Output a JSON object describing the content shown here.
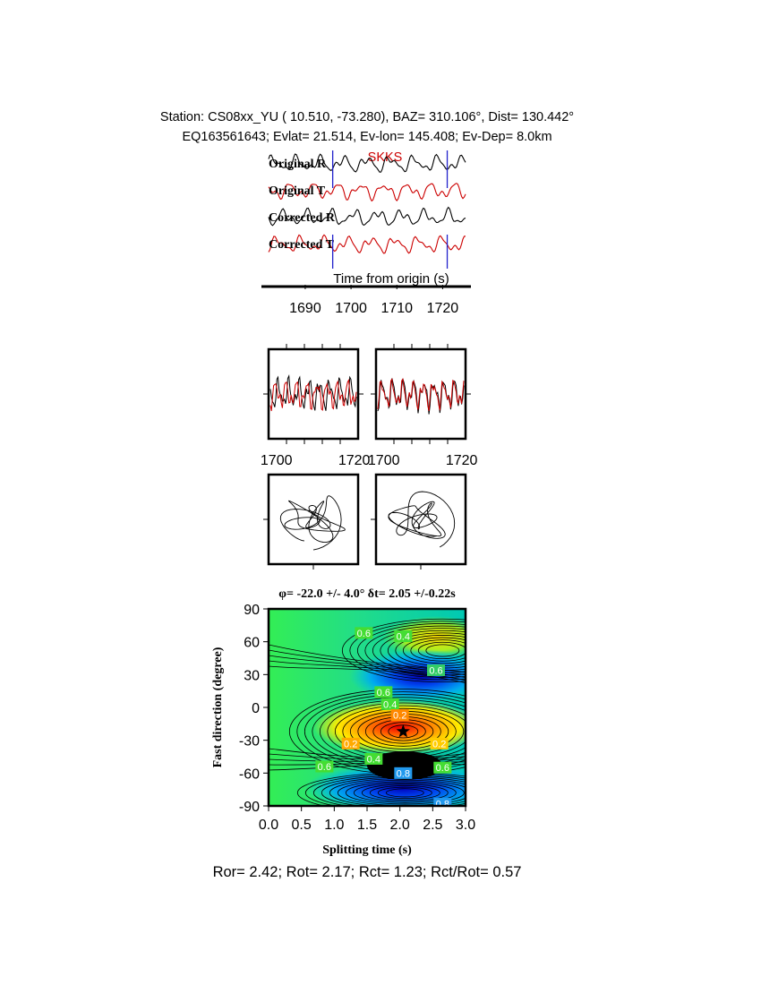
{
  "header": {
    "station_line": "Station: CS08xx_YU (  10.510,  -73.280), BAZ=  310.106°, Dist=  130.442°",
    "event_line": "EQ163561643; Evlat=  21.514, Ev-lon= 145.408; Ev-Dep=  8.0km"
  },
  "chart_data": [
    {
      "type": "line",
      "panel": "seismograms",
      "phase_label": "SKKS",
      "traces": [
        {
          "name": "Original R",
          "color": "#000000"
        },
        {
          "name": "Original T",
          "color": "#cc0000"
        },
        {
          "name": "Corrected R",
          "color": "#000000"
        },
        {
          "name": "Corrected T",
          "color": "#cc0000"
        }
      ],
      "window_markers_s": [
        1696,
        1721
      ],
      "xlabel": "Time from origin (s)",
      "xlim": [
        1682,
        1725
      ],
      "xticks": [
        1690,
        1700,
        1710,
        1720
      ],
      "colors": {
        "radial": "#000000",
        "transverse": "#cc0000",
        "window": "#2222cc",
        "phase": "#cc0000"
      }
    },
    {
      "type": "line",
      "panel": "particle-motion-waveforms",
      "subplots": [
        {
          "name": "original",
          "xlim": [
            1698,
            1721
          ],
          "xticks": [
            1700,
            1720
          ]
        },
        {
          "name": "corrected",
          "xlim": [
            1698,
            1721
          ],
          "xticks": [
            1700,
            1720
          ]
        }
      ]
    },
    {
      "type": "line",
      "panel": "particle-motion",
      "subplots": [
        {
          "name": "original"
        },
        {
          "name": "corrected"
        }
      ]
    },
    {
      "type": "heatmap",
      "panel": "energy-grid",
      "title": "φ= -22.0 +/- 4.0° δt= 2.05 +/-0.22s",
      "best_fit": {
        "phi_deg": -22.0,
        "phi_err_deg": 4.0,
        "dt_s": 2.05,
        "dt_err_s": 0.22
      },
      "xlabel": "Splitting time (s)",
      "ylabel": "Fast direction (degree)",
      "xlim": [
        0,
        3
      ],
      "ylim": [
        -90,
        90
      ],
      "xticks": [
        "0.0",
        "0.5",
        "1.0",
        "1.5",
        "2.0",
        "2.5",
        "3.0"
      ],
      "yticks": [
        "90",
        "60",
        "30",
        "0",
        "-30",
        "-60",
        "-90"
      ],
      "contour_labels": [
        {
          "text": "0.6",
          "dt": 1.45,
          "phi": 68,
          "fill": "#44dd33"
        },
        {
          "text": "0.4",
          "dt": 2.05,
          "phi": 65,
          "fill": "#44dd33"
        },
        {
          "text": "0.6",
          "dt": 2.55,
          "phi": 34,
          "fill": "#33cc66"
        },
        {
          "text": "0.6",
          "dt": 1.75,
          "phi": 14,
          "fill": "#44dd33"
        },
        {
          "text": "0.4",
          "dt": 1.85,
          "phi": 3,
          "fill": "#44dd33"
        },
        {
          "text": "0.2",
          "dt": 2.0,
          "phi": -7,
          "fill": "#ff8800"
        },
        {
          "text": "0.2",
          "dt": 1.25,
          "phi": -33,
          "fill": "#ffaa00"
        },
        {
          "text": "0.2",
          "dt": 2.6,
          "phi": -33,
          "fill": "#ffcc00"
        },
        {
          "text": "0.4",
          "dt": 1.6,
          "phi": -47,
          "fill": "#44dd33"
        },
        {
          "text": "0.6",
          "dt": 0.85,
          "phi": -54,
          "fill": "#44dd33"
        },
        {
          "text": "0.6",
          "dt": 2.65,
          "phi": -55,
          "fill": "#44dd33"
        },
        {
          "text": "0.8",
          "dt": 2.05,
          "phi": -60,
          "fill": "#2299ee"
        },
        {
          "text": "0.8",
          "dt": 2.65,
          "phi": -88,
          "fill": "#2299ee"
        }
      ]
    }
  ],
  "footer": {
    "ratios_line": "Ror= 2.42; Rot= 2.17; Rct= 1.23; Rct/Rot= 0.57"
  }
}
